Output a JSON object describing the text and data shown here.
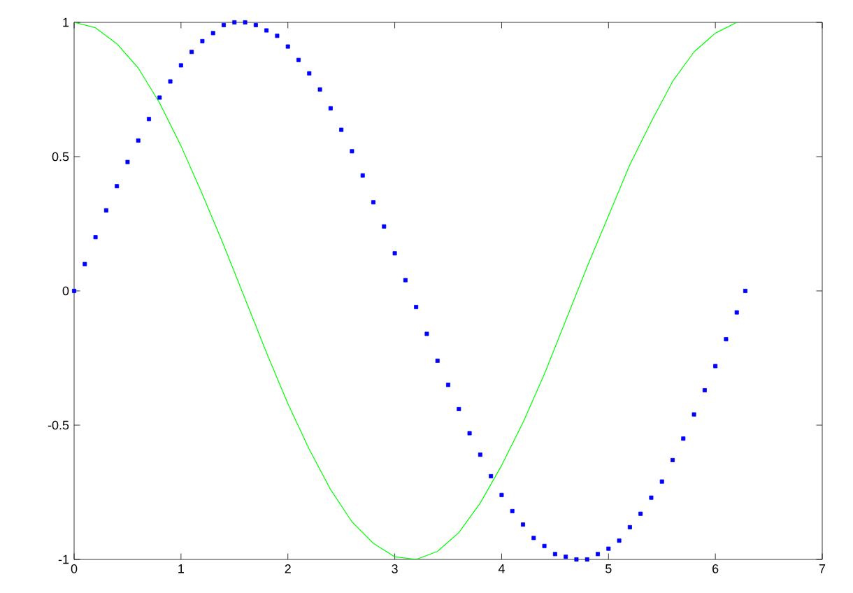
{
  "chart_data": {
    "type": "line",
    "xlim": [
      0,
      7
    ],
    "ylim": [
      -1,
      1
    ],
    "xticks": [
      0,
      1,
      2,
      3,
      4,
      5,
      6,
      7
    ],
    "yticks": [
      -1,
      -0.5,
      0,
      0.5,
      1
    ],
    "series": [
      {
        "type": "scatter",
        "marker": "square",
        "color": "#0000ff",
        "x": [
          0,
          0.1,
          0.2,
          0.3,
          0.4,
          0.5,
          0.6,
          0.7,
          0.8,
          0.9,
          1.0,
          1.1,
          1.2,
          1.3,
          1.4,
          1.5,
          1.6,
          1.7,
          1.8,
          1.9,
          2.0,
          2.1,
          2.2,
          2.3,
          2.4,
          2.5,
          2.6,
          2.7,
          2.8,
          2.9,
          3.0,
          3.1,
          3.2,
          3.3,
          3.4,
          3.5,
          3.6,
          3.7,
          3.8,
          3.9,
          4.0,
          4.1,
          4.2,
          4.3,
          4.4,
          4.5,
          4.6,
          4.7,
          4.8,
          4.9,
          5.0,
          5.1,
          5.2,
          5.3,
          5.4,
          5.5,
          5.6,
          5.7,
          5.8,
          5.9,
          6.0,
          6.1,
          6.2,
          6.28
        ],
        "values": [
          0,
          0.1,
          0.2,
          0.3,
          0.39,
          0.48,
          0.56,
          0.64,
          0.72,
          0.78,
          0.84,
          0.89,
          0.93,
          0.96,
          0.99,
          1.0,
          1.0,
          0.99,
          0.97,
          0.95,
          0.91,
          0.86,
          0.81,
          0.75,
          0.68,
          0.6,
          0.52,
          0.43,
          0.33,
          0.24,
          0.14,
          0.04,
          -0.06,
          -0.16,
          -0.26,
          -0.35,
          -0.44,
          -0.53,
          -0.61,
          -0.69,
          -0.76,
          -0.82,
          -0.87,
          -0.92,
          -0.95,
          -0.98,
          -0.99,
          -1.0,
          -1.0,
          -0.98,
          -0.96,
          -0.93,
          -0.88,
          -0.83,
          -0.77,
          -0.71,
          -0.63,
          -0.55,
          -0.46,
          -0.37,
          -0.28,
          -0.18,
          -0.08,
          0
        ]
      },
      {
        "marker": "none",
        "line_style": "solid",
        "color": "#00ff00",
        "x": [
          0,
          0.2,
          0.4,
          0.6,
          0.8,
          1.0,
          1.2,
          1.4,
          1.6,
          1.8,
          2.0,
          2.2,
          2.4,
          2.6,
          2.8,
          3.0,
          3.2,
          3.4,
          3.6,
          3.8,
          4.0,
          4.2,
          4.4,
          4.6,
          4.8,
          5.0,
          5.2,
          5.4,
          5.6,
          5.8,
          6.0,
          6.2
        ],
        "values": [
          1,
          0.98,
          0.92,
          0.83,
          0.7,
          0.54,
          0.36,
          0.17,
          -0.03,
          -0.23,
          -0.42,
          -0.59,
          -0.74,
          -0.86,
          -0.94,
          -0.99,
          -1.0,
          -0.97,
          -0.9,
          -0.79,
          -0.65,
          -0.49,
          -0.31,
          -0.11,
          0.09,
          0.28,
          0.47,
          0.63,
          0.78,
          0.89,
          0.96,
          1.0
        ]
      }
    ]
  }
}
